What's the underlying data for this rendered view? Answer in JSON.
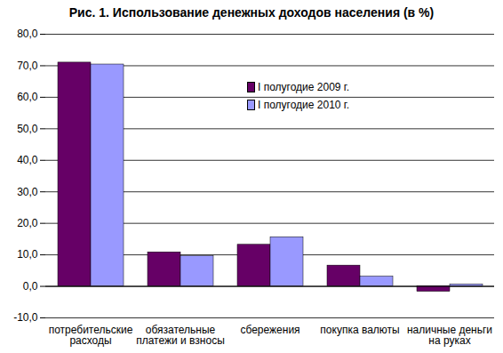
{
  "chart_data": {
    "type": "bar",
    "title": "Рис. 1. Использование денежных доходов населения (в %)",
    "categories": [
      "потребительские\nрасходы",
      "обязательные\nплатежи и взносы",
      "сбережения",
      "покупка валюты",
      "наличные деньги\nна руках"
    ],
    "series": [
      {
        "name": "I полугодие 2009 г.",
        "color": "#660066",
        "values": [
          71.0,
          10.8,
          13.2,
          6.6,
          -1.7
        ]
      },
      {
        "name": "I полугодие 2010 г.",
        "color": "#9999ff",
        "values": [
          70.4,
          9.6,
          15.6,
          3.1,
          0.6
        ]
      }
    ],
    "ylim": [
      -10,
      80
    ],
    "yticks": [
      {
        "value": -10,
        "label": "-10,0"
      },
      {
        "value": 0,
        "label": "0,0"
      },
      {
        "value": 10,
        "label": "10,0"
      },
      {
        "value": 20,
        "label": "20,0"
      },
      {
        "value": 30,
        "label": "30,0"
      },
      {
        "value": 40,
        "label": "40,0"
      },
      {
        "value": 50,
        "label": "50,0"
      },
      {
        "value": 60,
        "label": "60,0"
      },
      {
        "value": 70,
        "label": "70,0"
      },
      {
        "value": 80,
        "label": "80,0"
      }
    ],
    "grid": true,
    "legend": "top"
  }
}
